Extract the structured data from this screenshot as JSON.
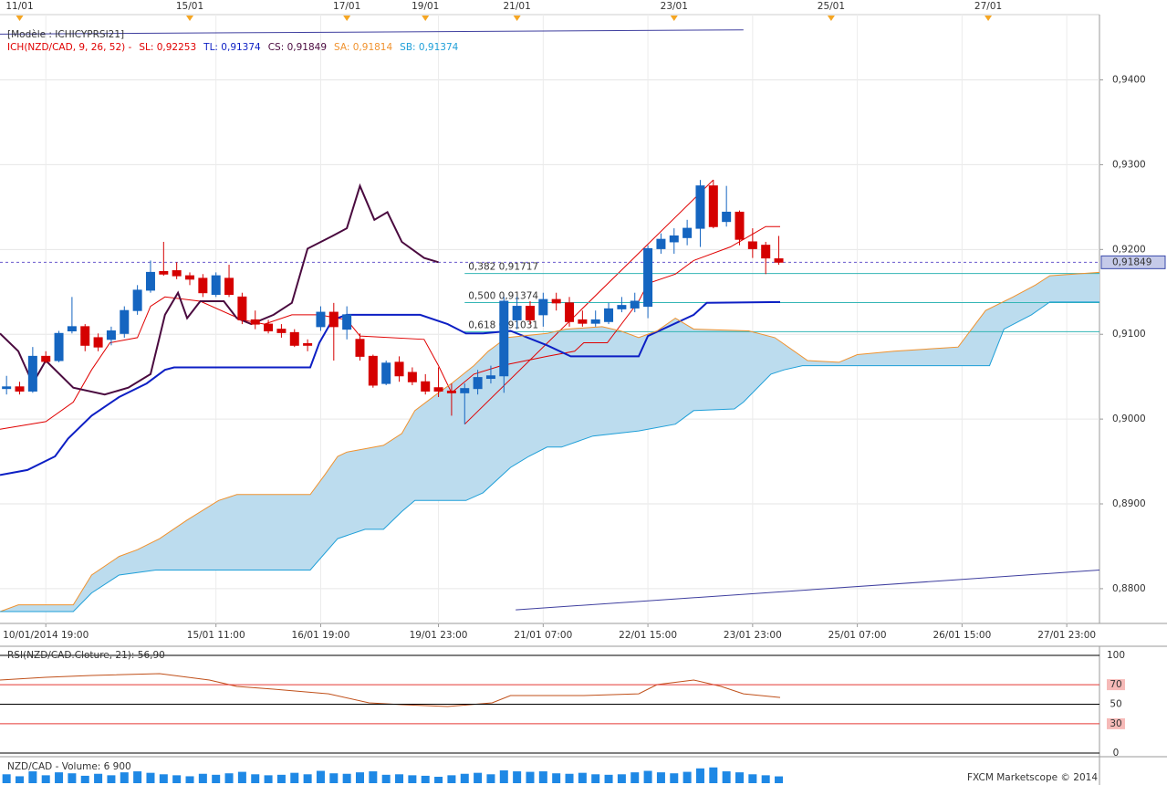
{
  "chart_data": [
    {
      "type": "candlestick",
      "legend_title": "[Modèle : ICHICYPRSI21]",
      "indicator": "ICH(NZD/CAD, 9, 26, 52) -",
      "indicator_color": "#e00000",
      "xlim": [
        -0.5,
        83.5
      ],
      "ylim": [
        0.8759,
        0.9477
      ],
      "yticks": [
        {
          "value": 0.88,
          "label": "0,8800"
        },
        {
          "value": 0.89,
          "label": "0,8900"
        },
        {
          "value": 0.9,
          "label": "0,9000"
        },
        {
          "value": 0.91,
          "label": "0,9100"
        },
        {
          "value": 0.92,
          "label": "0,9200"
        },
        {
          "value": 0.93,
          "label": "0,9300"
        },
        {
          "value": 0.94,
          "label": "0,9400"
        }
      ],
      "xticks": [
        {
          "value": 3,
          "label": "10/01/2014 19:00"
        },
        {
          "value": 16,
          "label": "15/01 11:00"
        },
        {
          "value": 24,
          "label": "16/01 19:00"
        },
        {
          "value": 33,
          "label": "19/01 23:00"
        },
        {
          "value": 41,
          "label": "21/01 07:00"
        },
        {
          "value": 49,
          "label": "22/01 15:00"
        },
        {
          "value": 57,
          "label": "23/01 23:00"
        },
        {
          "value": 65,
          "label": "25/01 07:00"
        },
        {
          "value": 73,
          "label": "26/01 15:00"
        },
        {
          "value": 81,
          "label": "27/01 23:00"
        }
      ],
      "top_xticks": [
        {
          "value": 1,
          "label": "11/01"
        },
        {
          "value": 14,
          "label": "15/01"
        },
        {
          "value": 26,
          "label": "17/01"
        },
        {
          "value": 32,
          "label": "19/01"
        },
        {
          "value": 39,
          "label": "21/01"
        },
        {
          "value": 51,
          "label": "23/01"
        },
        {
          "value": 63,
          "label": "25/01"
        },
        {
          "value": 75,
          "label": "27/01"
        }
      ],
      "marker_color": "#f5a623",
      "grid": true,
      "up_color": "#1565c0",
      "down_color": "#d50000",
      "candles": {
        "x": [
          0,
          1,
          2,
          3,
          4,
          5,
          6,
          7,
          8,
          9,
          10,
          11,
          12,
          13,
          14,
          15,
          16,
          17,
          18,
          19,
          20,
          21,
          22,
          23,
          24,
          25,
          26,
          27,
          28,
          29,
          30,
          31,
          32,
          33,
          34,
          35,
          36,
          37,
          38,
          39,
          40,
          41,
          42,
          43,
          44,
          45,
          46,
          47,
          48,
          49,
          50,
          51,
          52,
          53,
          54,
          55,
          56,
          57,
          58,
          59
        ],
        "open": [
          0.9036,
          0.9038,
          0.9033,
          0.9074,
          0.9069,
          0.9104,
          0.9109,
          0.9096,
          0.9094,
          0.9101,
          0.9128,
          0.9152,
          0.9174,
          0.9175,
          0.9169,
          0.9166,
          0.9147,
          0.9166,
          0.9144,
          0.9117,
          0.9112,
          0.9106,
          0.9102,
          0.9089,
          0.9109,
          0.9126,
          0.9106,
          0.9094,
          0.9074,
          0.9042,
          0.9067,
          0.9055,
          0.9044,
          0.9037,
          0.9033,
          0.9031,
          0.9036,
          0.9048,
          0.9051,
          0.9117,
          0.9133,
          0.9123,
          0.9141,
          0.9137,
          0.9117,
          0.9113,
          0.9115,
          0.913,
          0.9131,
          0.9133,
          0.9201,
          0.9209,
          0.9214,
          0.9225,
          0.9275,
          0.9233,
          0.9244,
          0.9209,
          0.9205,
          0.9189
        ],
        "high": [
          0.9051,
          0.9044,
          0.9085,
          0.908,
          0.9104,
          0.9144,
          0.9112,
          0.9101,
          0.9109,
          0.9133,
          0.9158,
          0.9187,
          0.9209,
          0.9185,
          0.9173,
          0.9171,
          0.9173,
          0.9182,
          0.9149,
          0.9128,
          0.9117,
          0.9112,
          0.9106,
          0.9094,
          0.9133,
          0.9137,
          0.9133,
          0.9101,
          0.9076,
          0.9069,
          0.9074,
          0.9061,
          0.9053,
          0.9061,
          0.9042,
          0.9042,
          0.9058,
          0.9063,
          0.9144,
          0.9144,
          0.9139,
          0.9149,
          0.9149,
          0.9144,
          0.9128,
          0.9128,
          0.9137,
          0.9144,
          0.9149,
          0.9205,
          0.9219,
          0.9225,
          0.9235,
          0.9282,
          0.9282,
          0.9275,
          0.9246,
          0.9225,
          0.9209,
          0.9216
        ],
        "low": [
          0.9029,
          0.9029,
          0.9031,
          0.9066,
          0.9067,
          0.9101,
          0.908,
          0.908,
          0.9087,
          0.9096,
          0.9123,
          0.9149,
          0.9169,
          0.9165,
          0.9158,
          0.9144,
          0.9144,
          0.9144,
          0.9112,
          0.9106,
          0.9101,
          0.9096,
          0.9085,
          0.908,
          0.9104,
          0.9069,
          0.9094,
          0.9069,
          0.9037,
          0.904,
          0.9044,
          0.904,
          0.9029,
          0.9026,
          0.9004,
          0.8994,
          0.9029,
          0.9042,
          0.9031,
          0.9106,
          0.9112,
          0.9109,
          0.9128,
          0.9109,
          0.9109,
          0.9109,
          0.9112,
          0.9126,
          0.9126,
          0.9119,
          0.9195,
          0.9195,
          0.9205,
          0.9203,
          0.9225,
          0.9227,
          0.9205,
          0.919,
          0.9171,
          0.9182
        ],
        "close": [
          0.9038,
          0.9033,
          0.9074,
          0.9068,
          0.9101,
          0.9109,
          0.9087,
          0.9085,
          0.9104,
          0.9128,
          0.9152,
          0.9173,
          0.9171,
          0.9169,
          0.9165,
          0.9149,
          0.9169,
          0.9147,
          0.9117,
          0.9112,
          0.9104,
          0.9102,
          0.9087,
          0.9087,
          0.9126,
          0.9109,
          0.9123,
          0.9074,
          0.904,
          0.9066,
          0.9051,
          0.9044,
          0.9033,
          0.9033,
          0.9031,
          0.9036,
          0.9049,
          0.9051,
          0.9139,
          0.9133,
          0.9117,
          0.9141,
          0.9137,
          0.9115,
          0.9113,
          0.9117,
          0.913,
          0.9134,
          0.9139,
          0.9201,
          0.9212,
          0.9216,
          0.9225,
          0.9275,
          0.9227,
          0.9244,
          0.9212,
          0.9201,
          0.919,
          0.9185
        ]
      },
      "cloud_color": "#bcdcee",
      "series": [
        {
          "name": "SL: 0,92253",
          "color": "#e00000",
          "x": [
            -0.5,
            3.0,
            5.1,
            6.5,
            7.9,
            10.0,
            11.0,
            12.1,
            14.8,
            18.0,
            19.7,
            21.8,
            23.9,
            26.0,
            27.0,
            31.9,
            33.0,
            34.0,
            35.7,
            37.8,
            41.3,
            43.4,
            44.1,
            45.9,
            48.3,
            49.0,
            51.1,
            52.5,
            55.3,
            58.0,
            59.1
          ],
          "values": [
            0.8988,
            0.8997,
            0.902,
            0.9058,
            0.909,
            0.9096,
            0.9133,
            0.9144,
            0.9139,
            0.9117,
            0.9112,
            0.9123,
            0.9123,
            0.9117,
            0.9098,
            0.9094,
            0.9063,
            0.9031,
            0.9053,
            0.9063,
            0.9074,
            0.908,
            0.909,
            0.909,
            0.9139,
            0.916,
            0.9171,
            0.9187,
            0.9203,
            0.9227,
            0.9227
          ]
        },
        {
          "name": "TL: 0,91374",
          "color": "#0d1fc4",
          "x": [
            -0.5,
            1.6,
            3.7,
            4.7,
            6.5,
            8.6,
            10.7,
            12.1,
            12.8,
            23.2,
            23.9,
            24.9,
            26.0,
            31.6,
            33.7,
            35.1,
            36.4,
            38.5,
            41.3,
            43.1,
            48.3,
            49.0,
            52.5,
            53.5,
            59.1
          ],
          "values": [
            0.8934,
            0.894,
            0.8956,
            0.8977,
            0.9004,
            0.9026,
            0.9042,
            0.9058,
            0.9061,
            0.9061,
            0.909,
            0.9117,
            0.9123,
            0.9123,
            0.9112,
            0.9101,
            0.9101,
            0.9104,
            0.9087,
            0.9074,
            0.9074,
            0.9098,
            0.9123,
            0.9137,
            0.9138
          ]
        },
        {
          "name": "CS: 0,91849",
          "color": "#4a0a3f",
          "x": [
            -0.5,
            0.9,
            2.0,
            3.0,
            5.1,
            7.5,
            9.3,
            11.0,
            12.1,
            13.1,
            13.8,
            14.8,
            16.6,
            17.6,
            18.7,
            20.4,
            21.8,
            23.0,
            24.9,
            26.0,
            27.0,
            28.1,
            29.1,
            30.2,
            31.9,
            33.0
          ],
          "values": [
            0.9101,
            0.908,
            0.9042,
            0.9069,
            0.9037,
            0.9029,
            0.9037,
            0.9053,
            0.9123,
            0.9149,
            0.9119,
            0.9139,
            0.9139,
            0.9119,
            0.9112,
            0.9123,
            0.9137,
            0.9201,
            0.9216,
            0.9225,
            0.9275,
            0.9235,
            0.9244,
            0.9209,
            0.919,
            0.9185
          ]
        },
        {
          "name": "SA: 0,91814",
          "color": "#f0922e",
          "x": [
            -0.5,
            0.9,
            5.1,
            6.5,
            8.6,
            10.0,
            11.7,
            13.8,
            16.2,
            17.6,
            23.2,
            24.3,
            25.3,
            26.0,
            27.4,
            28.8,
            30.2,
            31.2,
            33.0,
            34.0,
            35.7,
            36.8,
            38.2,
            41.3,
            42.7,
            45.5,
            46.9,
            48.3,
            49.7,
            51.1,
            52.5,
            56.7,
            58.7,
            61.2,
            63.6,
            65.0,
            67.8,
            72.7,
            74.8,
            76.9,
            78.6,
            79.7,
            83.5
          ],
          "values": [
            0.8773,
            0.8781,
            0.8781,
            0.8816,
            0.8838,
            0.8846,
            0.8859,
            0.8881,
            0.8904,
            0.8911,
            0.8911,
            0.8934,
            0.8956,
            0.8961,
            0.8965,
            0.8969,
            0.8983,
            0.901,
            0.9031,
            0.9042,
            0.9063,
            0.908,
            0.9096,
            0.9101,
            0.9106,
            0.9109,
            0.9104,
            0.9096,
            0.9104,
            0.9119,
            0.9106,
            0.9104,
            0.9096,
            0.9069,
            0.9067,
            0.9076,
            0.908,
            0.9085,
            0.9128,
            0.9144,
            0.9158,
            0.9169,
            0.9173
          ]
        },
        {
          "name": "SB: 0,91374",
          "color": "#1e9fd8",
          "x": [
            -0.5,
            5.1,
            6.5,
            8.6,
            11.4,
            23.2,
            25.3,
            27.4,
            28.8,
            30.2,
            31.2,
            35.1,
            36.4,
            38.5,
            39.9,
            41.3,
            42.4,
            44.8,
            48.3,
            51.1,
            52.5,
            55.6,
            56.3,
            58.4,
            59.4,
            60.8,
            75.1,
            76.2,
            78.3,
            79.7,
            83.5
          ],
          "values": [
            0.8773,
            0.8773,
            0.8795,
            0.8816,
            0.8822,
            0.8822,
            0.8859,
            0.887,
            0.887,
            0.8891,
            0.8904,
            0.8904,
            0.8913,
            0.8943,
            0.8956,
            0.8967,
            0.8967,
            0.898,
            0.8986,
            0.8994,
            0.901,
            0.9012,
            0.902,
            0.9053,
            0.9058,
            0.9063,
            0.9063,
            0.9106,
            0.9123,
            0.9138,
            0.9138
          ]
        }
      ],
      "trendlines": [
        {
          "color": "#3f3f9f",
          "x": [
            -0.5,
            56.3
          ],
          "values": [
            0.9454,
            0.9459
          ]
        },
        {
          "color": "#3f3f9f",
          "x": [
            38.9,
            83.5
          ],
          "values": [
            0.8775,
            0.8822
          ]
        },
        {
          "color": "#e00000",
          "x": [
            35,
            54
          ],
          "values": [
            0.8994,
            0.9282
          ]
        }
      ],
      "fib_start": 35,
      "fib_color": "#33b5b5",
      "fib_levels": [
        {
          "value": 0.91717,
          "label": "0,382 0,91717"
        },
        {
          "value": 0.91374,
          "label": "0,500 0,91374"
        },
        {
          "value": 0.91031,
          "label": "0,618 0,91031"
        }
      ],
      "last_price": {
        "value": 0.91849,
        "label": "0,91849"
      },
      "last_price_color": "#6a5acd"
    },
    {
      "type": "line",
      "title": "RSI(NZD/CAD.Cloture, 21): 56,90",
      "title_color": "#d84315",
      "xlim": [
        -0.5,
        83.5
      ],
      "ylim": [
        0,
        100
      ],
      "yticks": [
        0,
        30,
        50,
        70,
        100
      ],
      "ytick_colors": [
        "#000000",
        "#e53935",
        "#000000",
        "#e53935",
        "#000000"
      ],
      "series": [
        {
          "color": "#c0501a",
          "x": [
            -0.5,
            3.0,
            6.5,
            11.7,
            15.5,
            17.6,
            20.4,
            24.6,
            27.7,
            30.2,
            33.7,
            37.1,
            38.5,
            44.1,
            48.3,
            49.7,
            52.5,
            54.6,
            56.3,
            59.1
          ],
          "values": [
            74.8,
            77.6,
            79.4,
            81.3,
            74.8,
            68.2,
            65.4,
            60.7,
            51.4,
            49.5,
            47.7,
            51.4,
            58.9,
            58.9,
            60.7,
            70.1,
            74.8,
            68.2,
            60.7,
            56.9
          ]
        }
      ]
    },
    {
      "type": "bar",
      "title": "NZD/CAD - Volume: 6 900",
      "title_color": "#1565c0",
      "xlim": [
        -0.5,
        83.5
      ],
      "ylim": [
        0,
        25000
      ],
      "color": "#1e88e5",
      "x": [
        0,
        1,
        2,
        3,
        4,
        5,
        6,
        7,
        8,
        9,
        10,
        11,
        12,
        13,
        14,
        15,
        16,
        17,
        18,
        19,
        20,
        21,
        22,
        23,
        24,
        25,
        26,
        27,
        28,
        29,
        30,
        31,
        32,
        33,
        34,
        35,
        36,
        37,
        38,
        39,
        40,
        41,
        42,
        43,
        44,
        45,
        46,
        47,
        48,
        49,
        50,
        51,
        52,
        53,
        54,
        55,
        56,
        57,
        58,
        59
      ],
      "values": [
        9000,
        7000,
        12000,
        8000,
        11000,
        10000,
        7500,
        9500,
        8000,
        11000,
        12000,
        10500,
        9000,
        8000,
        7000,
        9500,
        8500,
        10000,
        11500,
        9000,
        8000,
        8500,
        10500,
        9000,
        12500,
        10000,
        9500,
        11000,
        12000,
        8500,
        9000,
        8000,
        7500,
        6500,
        8000,
        9500,
        10500,
        9000,
        13000,
        12000,
        11500,
        12000,
        10000,
        9500,
        10500,
        9000,
        8500,
        9000,
        11000,
        12500,
        11000,
        10000,
        11500,
        15000,
        16000,
        12000,
        11000,
        9000,
        8000,
        6900
      ]
    }
  ],
  "footer": "FXCM Marketscope © 2014"
}
